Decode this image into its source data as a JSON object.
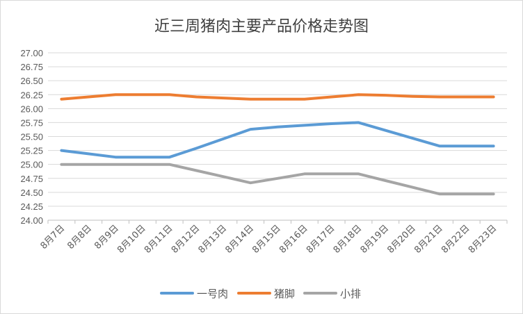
{
  "chart_data": {
    "type": "line",
    "title": "近三周猪肉主要产品价格走势图",
    "categories": [
      "8月7日",
      "8月8日",
      "8月9日",
      "8月10日",
      "8月11日",
      "8月12日",
      "8月13日",
      "8月14日",
      "8月15日",
      "8月16日",
      "8月17日",
      "8月18日",
      "8月19日",
      "8月20日",
      "8月21日",
      "8月22日",
      "8月23日"
    ],
    "series": [
      {
        "name": "一号肉",
        "color": "#5b9bd5",
        "values": [
          25.25,
          25.19,
          25.13,
          25.13,
          25.13,
          25.29,
          25.46,
          25.63,
          25.67,
          25.7,
          25.73,
          25.75,
          25.61,
          25.47,
          25.33,
          25.33,
          25.33
        ]
      },
      {
        "name": "猪脚",
        "color": "#ed7d31",
        "values": [
          26.17,
          26.21,
          26.25,
          26.25,
          26.25,
          26.21,
          26.19,
          26.17,
          26.17,
          26.17,
          26.21,
          26.25,
          26.24,
          26.22,
          26.21,
          26.21,
          26.21
        ]
      },
      {
        "name": "小排",
        "color": "#a5a5a5",
        "values": [
          25.0,
          25.0,
          25.0,
          25.0,
          25.0,
          24.89,
          24.78,
          24.67,
          24.75,
          24.83,
          24.83,
          24.83,
          24.71,
          24.59,
          24.47,
          24.47,
          24.47
        ]
      }
    ],
    "yticks": [
      "27.00",
      "26.75",
      "26.50",
      "26.25",
      "26.00",
      "25.75",
      "25.50",
      "25.25",
      "25.00",
      "24.75",
      "24.50",
      "24.25",
      "24.00"
    ],
    "ylim": [
      24.0,
      27.0
    ],
    "grid": true,
    "legend": "bottom"
  }
}
